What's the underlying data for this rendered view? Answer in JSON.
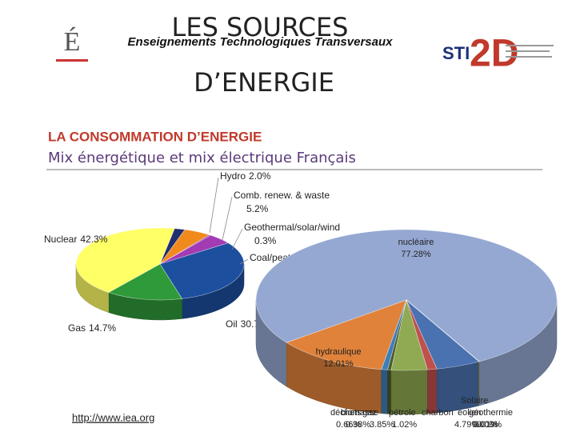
{
  "header": {
    "banner": "Enseignements Technologiques Transversaux",
    "title_line1": "LES SOURCES",
    "title_line2": "D’ENERGIE",
    "logo_left": "É",
    "logo_right_a": "STI",
    "logo_right_b": "2D"
  },
  "section": {
    "heading": "LA CONSOMMATION D’ENERGIE",
    "subheading": "Mix énergétique et mix électrique Français"
  },
  "footer": {
    "link": "http://www.iea.org"
  },
  "chart_data": [
    {
      "type": "pie",
      "categories": [
        "Hydro",
        "Comb. renew. & waste",
        "Geothermal/solar/wind",
        "Coal/peat",
        "Oil",
        "Gas",
        "Nuclear"
      ],
      "values": [
        2.0,
        5.2,
        0.3,
        4.8,
        30.7,
        14.7,
        42.3
      ],
      "value_labels": [
        "2.0%",
        "5.2%",
        "0.3%",
        null,
        "30.7%",
        "14.7%",
        "42.3%"
      ],
      "colors": [
        "#1f2f6f",
        "#f08a1c",
        "#8a1f9a",
        "#a23bb4",
        "#1d4f9f",
        "#2f9a3a",
        "#ffff66"
      ]
    },
    {
      "type": "pie",
      "categories": [
        "nucléaire",
        "hydraulique",
        "déchets",
        "biomasse",
        "gaz",
        "pétrole",
        "charbon",
        "éolien",
        "Solaire",
        "géothermie"
      ],
      "values": [
        77.28,
        12.01,
        0.66,
        0.38,
        3.85,
        1.02,
        4.79,
        0.0,
        0.01,
        0.0
      ],
      "value_labels": [
        "77.28%",
        "12.01%",
        "0.66%",
        "0.38%",
        "3.85%",
        "1.02%",
        "4.79%",
        "0.00%",
        "0.01%",
        "0.00%"
      ],
      "colors": [
        "#95a8d2",
        "#e0823a",
        "#3e7fb8",
        "#4d5a2a",
        "#8faa52",
        "#c0504d",
        "#4a72b0",
        "#7f7f7f",
        "#f2c200",
        "#7a3d9a"
      ]
    }
  ]
}
